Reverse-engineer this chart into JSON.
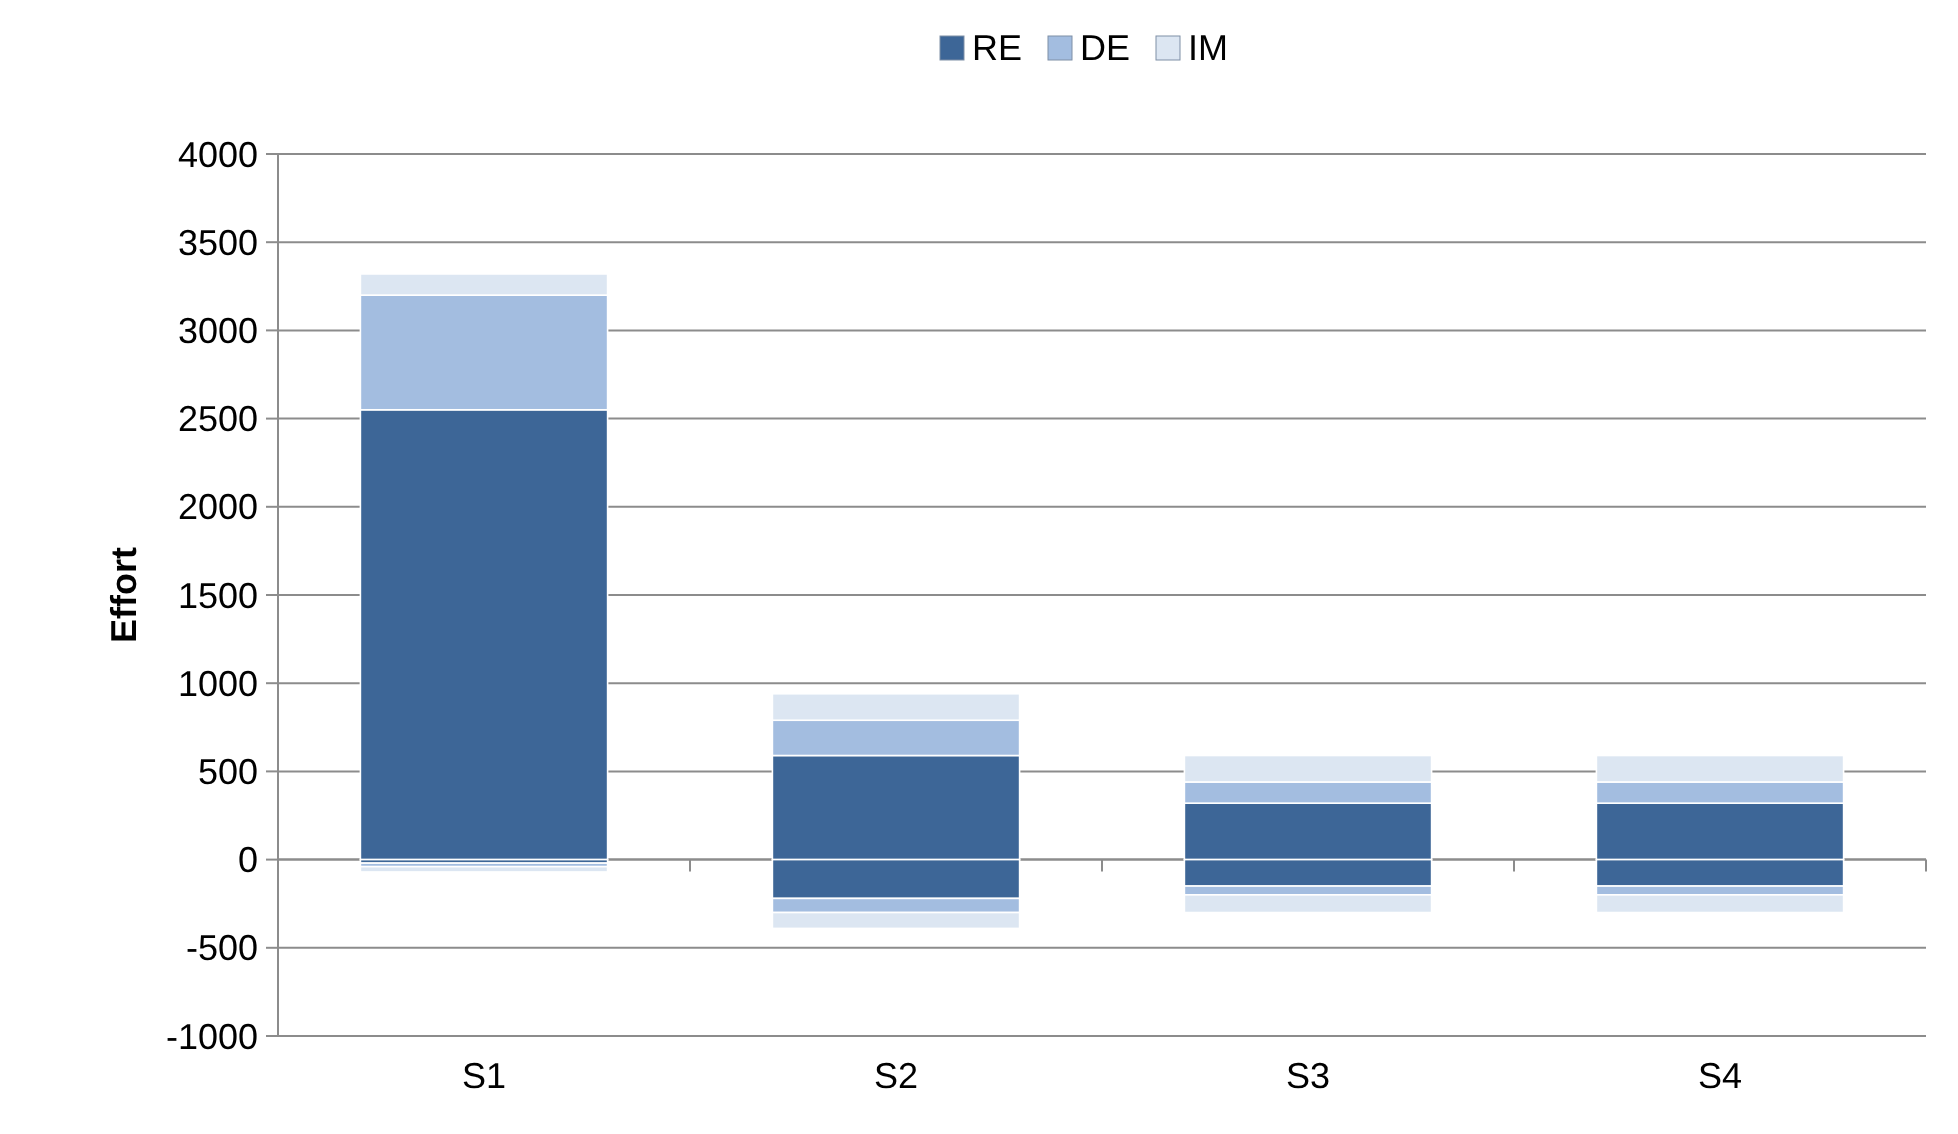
{
  "chart_data": {
    "type": "bar",
    "stacked": true,
    "ylabel": "Effort",
    "categories": [
      "S1",
      "S2",
      "S3",
      "S4"
    ],
    "series": [
      {
        "name": "RE",
        "color": "#3d6697",
        "values": [
          2550,
          590,
          320,
          320
        ]
      },
      {
        "name": "DE",
        "color": "#a3bde0",
        "values": [
          650,
          200,
          120,
          120
        ]
      },
      {
        "name": "IM",
        "color": "#dce6f2",
        "values": [
          120,
          150,
          150,
          150
        ]
      },
      {
        "color": "#3d6697",
        "values": [
          -20,
          -220,
          -150,
          -150
        ]
      },
      {
        "color": "#a3bde0",
        "values": [
          -20,
          -80,
          -50,
          -50
        ]
      },
      {
        "color": "#dce6f2",
        "values": [
          -30,
          -90,
          -100,
          -100
        ]
      }
    ],
    "ylim": [
      -1000,
      4000
    ],
    "yticks": [
      -1000,
      -500,
      0,
      500,
      1000,
      1500,
      2000,
      2500,
      3000,
      3500,
      4000
    ],
    "grid": "y",
    "legend": "top"
  }
}
